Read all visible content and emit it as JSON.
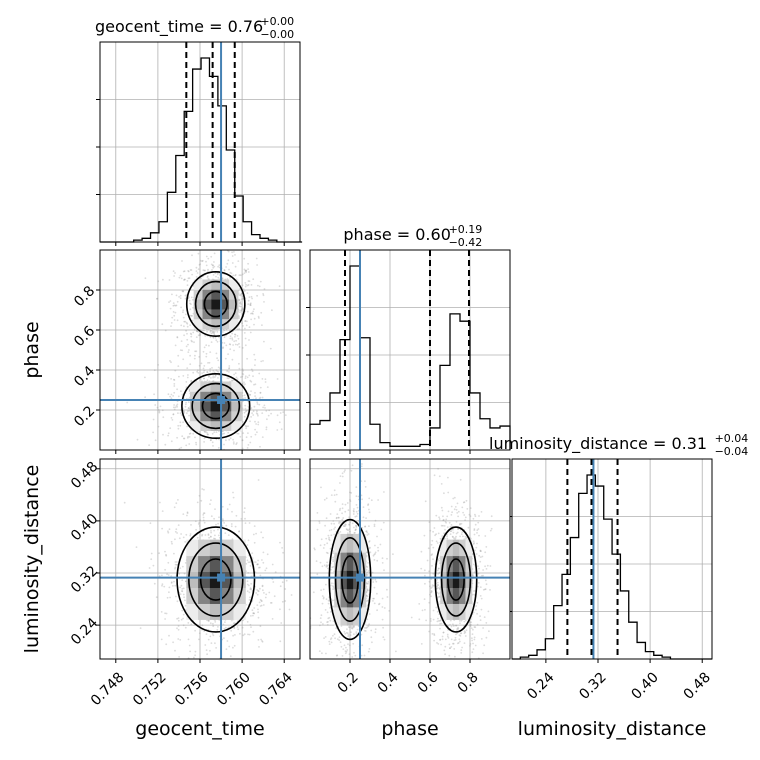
{
  "chart_data": {
    "type": "corner",
    "parameters": [
      "geocent_time",
      "phase",
      "luminosity_distance"
    ],
    "truths": {
      "geocent_time": 0.758,
      "phase": 0.25,
      "luminosity_distance": 0.313
    },
    "axes": {
      "geocent_time": {
        "range": [
          0.7465,
          0.7655
        ],
        "ticks": [
          "0.748",
          "0.752",
          "0.756",
          "0.760",
          "0.764"
        ],
        "tick_values": [
          0.748,
          0.752,
          0.756,
          0.76,
          0.764
        ],
        "label": "geocent_time"
      },
      "phase": {
        "range": [
          0.0,
          1.0
        ],
        "ticks": [
          "0.2",
          "0.4",
          "0.6",
          "0.8"
        ],
        "tick_values": [
          0.2,
          0.4,
          0.6,
          0.8
        ],
        "label": "phase"
      },
      "luminosity_distance": {
        "range": [
          0.188,
          0.495
        ],
        "ticks": [
          "0.24",
          "0.32",
          "0.40",
          "0.48"
        ],
        "tick_values": [
          0.24,
          0.32,
          0.4,
          0.48
        ],
        "label": "luminosity_distance"
      }
    },
    "diagonal": [
      {
        "parameter": "geocent_time",
        "title": {
          "main": "geocent_time = 0.76",
          "sup": "+0.00",
          "sub": "−0.00"
        },
        "quantiles": [
          0.7547,
          0.7572,
          0.7593
        ],
        "bin_edges": [
          0.7465,
          0.7473,
          0.7481,
          0.7489,
          0.7497,
          0.7505,
          0.7513,
          0.7521,
          0.7529,
          0.7537,
          0.7545,
          0.7553,
          0.7561,
          0.7569,
          0.7577,
          0.7585,
          0.7593,
          0.7601,
          0.7609,
          0.7617,
          0.7625,
          0.7633,
          0.7641,
          0.7649,
          0.7657
        ],
        "counts": [
          0,
          0,
          0,
          0,
          0.01,
          0.02,
          0.05,
          0.11,
          0.27,
          0.47,
          0.71,
          0.94,
          1.0,
          0.9,
          0.74,
          0.5,
          0.25,
          0.11,
          0.04,
          0.02,
          0.01,
          0,
          0,
          0
        ]
      },
      {
        "parameter": "phase",
        "title": {
          "main": "phase = 0.60",
          "sup": "+0.19",
          "sub": "−0.42"
        },
        "quantiles": [
          0.175,
          0.6,
          0.795
        ],
        "bin_edges": [
          0.0,
          0.05,
          0.1,
          0.15,
          0.2,
          0.25,
          0.3,
          0.35,
          0.4,
          0.45,
          0.5,
          0.55,
          0.6,
          0.65,
          0.7,
          0.75,
          0.8,
          0.85,
          0.9,
          0.95,
          1.0
        ],
        "counts": [
          0.14,
          0.16,
          0.31,
          0.6,
          1.0,
          0.61,
          0.14,
          0.04,
          0.02,
          0.02,
          0.02,
          0.03,
          0.12,
          0.46,
          0.74,
          0.7,
          0.31,
          0.17,
          0.12,
          0.13
        ]
      },
      {
        "parameter": "luminosity_distance",
        "title": {
          "main": "luminosity_distance = 0.31",
          "sup": "+0.04",
          "sub": "−0.04"
        },
        "quantiles": [
          0.273,
          0.31,
          0.35
        ],
        "bin_edges": [
          0.188,
          0.2008,
          0.2136,
          0.2264,
          0.2392,
          0.252,
          0.2648,
          0.2776,
          0.2904,
          0.3032,
          0.316,
          0.3288,
          0.3416,
          0.3544,
          0.3672,
          0.38,
          0.3928,
          0.4056,
          0.4184,
          0.4312,
          0.444,
          0.4568,
          0.4696,
          0.4824,
          0.495
        ],
        "counts": [
          0,
          0.01,
          0.02,
          0.05,
          0.11,
          0.29,
          0.46,
          0.66,
          0.9,
          1.0,
          0.94,
          0.76,
          0.57,
          0.37,
          0.2,
          0.09,
          0.04,
          0.02,
          0.01,
          0,
          0,
          0,
          0,
          0
        ]
      }
    ],
    "pairs": [
      {
        "x": "geocent_time",
        "y": "phase",
        "modes": [
          {
            "x": 0.7575,
            "y": 0.73,
            "sx": 0.0012,
            "sy": 0.07
          },
          {
            "x": 0.7575,
            "y": 0.22,
            "sx": 0.0014,
            "sy": 0.07
          }
        ]
      },
      {
        "x": "geocent_time",
        "y": "luminosity_distance",
        "modes": [
          {
            "x": 0.7575,
            "y": 0.31,
            "sx": 0.0016,
            "sy": 0.035
          }
        ]
      },
      {
        "x": "phase",
        "y": "luminosity_distance",
        "modes": [
          {
            "x": 0.2,
            "y": 0.31,
            "sx": 0.045,
            "sy": 0.04
          },
          {
            "x": 0.73,
            "y": 0.31,
            "sx": 0.045,
            "sy": 0.035
          }
        ]
      }
    ],
    "colors": {
      "truth": "#4682b4",
      "line": "#000000",
      "grid": "#b0b0b0",
      "scatter": "#9a9a9a"
    },
    "grid": true
  }
}
